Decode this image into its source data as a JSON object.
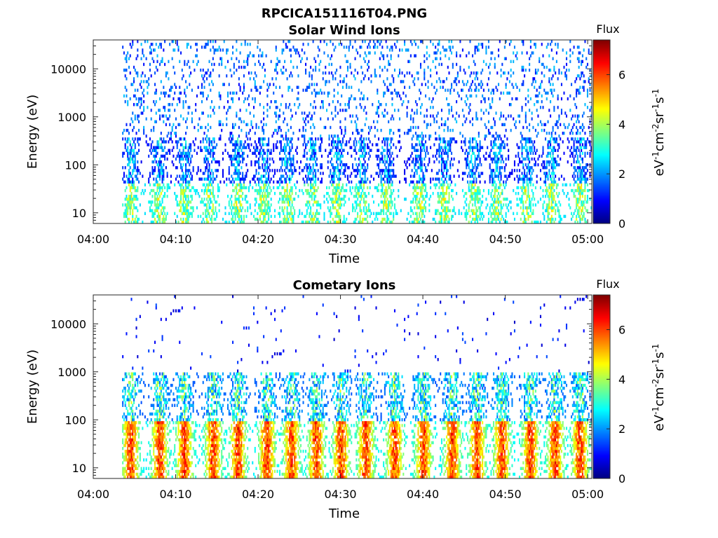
{
  "figure": {
    "title": "RPCICA151116T04.PNG"
  },
  "colorscale": [
    "#00007f",
    "#0000ff",
    "#007fff",
    "#00ffff",
    "#7fff7f",
    "#ffff00",
    "#ff7f00",
    "#ff0000",
    "#7f0000"
  ],
  "chart_data": [
    {
      "type": "heatmap",
      "title": "Solar Wind Ions",
      "xlabel": "Time",
      "ylabel": "Energy (eV)",
      "x_ticks": [
        "04:00",
        "04:10",
        "04:20",
        "04:30",
        "04:40",
        "04:50",
        "05:00"
      ],
      "xlim_minutes": [
        0,
        60.5
      ],
      "y_scale": "log",
      "y_ticks": [
        "10",
        "100",
        "1000",
        "10000"
      ],
      "ylim": [
        6,
        40000
      ],
      "colorbar": {
        "title": "Flux",
        "label": "eV-1cm-2sr-1s-1",
        "ticks": [
          "0",
          "2",
          "4",
          "6"
        ],
        "range": [
          0,
          7.4
        ]
      },
      "data_start_minute": 3.5,
      "data_end_minute": 60.5,
      "bursts_minutes": [
        4.5,
        7.9,
        11.0,
        14.0,
        17.5,
        20.5,
        23.5,
        26.5,
        29.5,
        32.5,
        35.5,
        39.5,
        42.5,
        46.0,
        49.0,
        52.5,
        55.5,
        59.0
      ],
      "description_levels": {
        "background_flux": 1.5,
        "burst_peak_flux": 5.0
      }
    },
    {
      "type": "heatmap",
      "title": "Cometary Ions",
      "xlabel": "Time",
      "ylabel": "Energy (eV)",
      "x_ticks": [
        "04:00",
        "04:10",
        "04:20",
        "04:30",
        "04:40",
        "04:50",
        "05:00"
      ],
      "xlim_minutes": [
        0,
        60.5
      ],
      "y_scale": "log",
      "y_ticks": [
        "10",
        "100",
        "1000",
        "10000"
      ],
      "ylim": [
        6,
        40000
      ],
      "colorbar": {
        "title": "Flux",
        "label": "eV-1cm-2sr-1s-1",
        "ticks": [
          "0",
          "2",
          "4",
          "6"
        ],
        "range": [
          0,
          7.4
        ]
      },
      "data_start_minute": 3.5,
      "data_end_minute": 60.5,
      "bursts_minutes": [
        4.5,
        8.0,
        11.0,
        14.5,
        17.5,
        21.0,
        24.0,
        27.0,
        30.0,
        33.0,
        36.5,
        40.0,
        43.5,
        46.5,
        49.5,
        53.0,
        56.0,
        59.0
      ],
      "description_levels": {
        "background_flux": 1.0,
        "burst_peak_flux": 6.8
      }
    }
  ]
}
